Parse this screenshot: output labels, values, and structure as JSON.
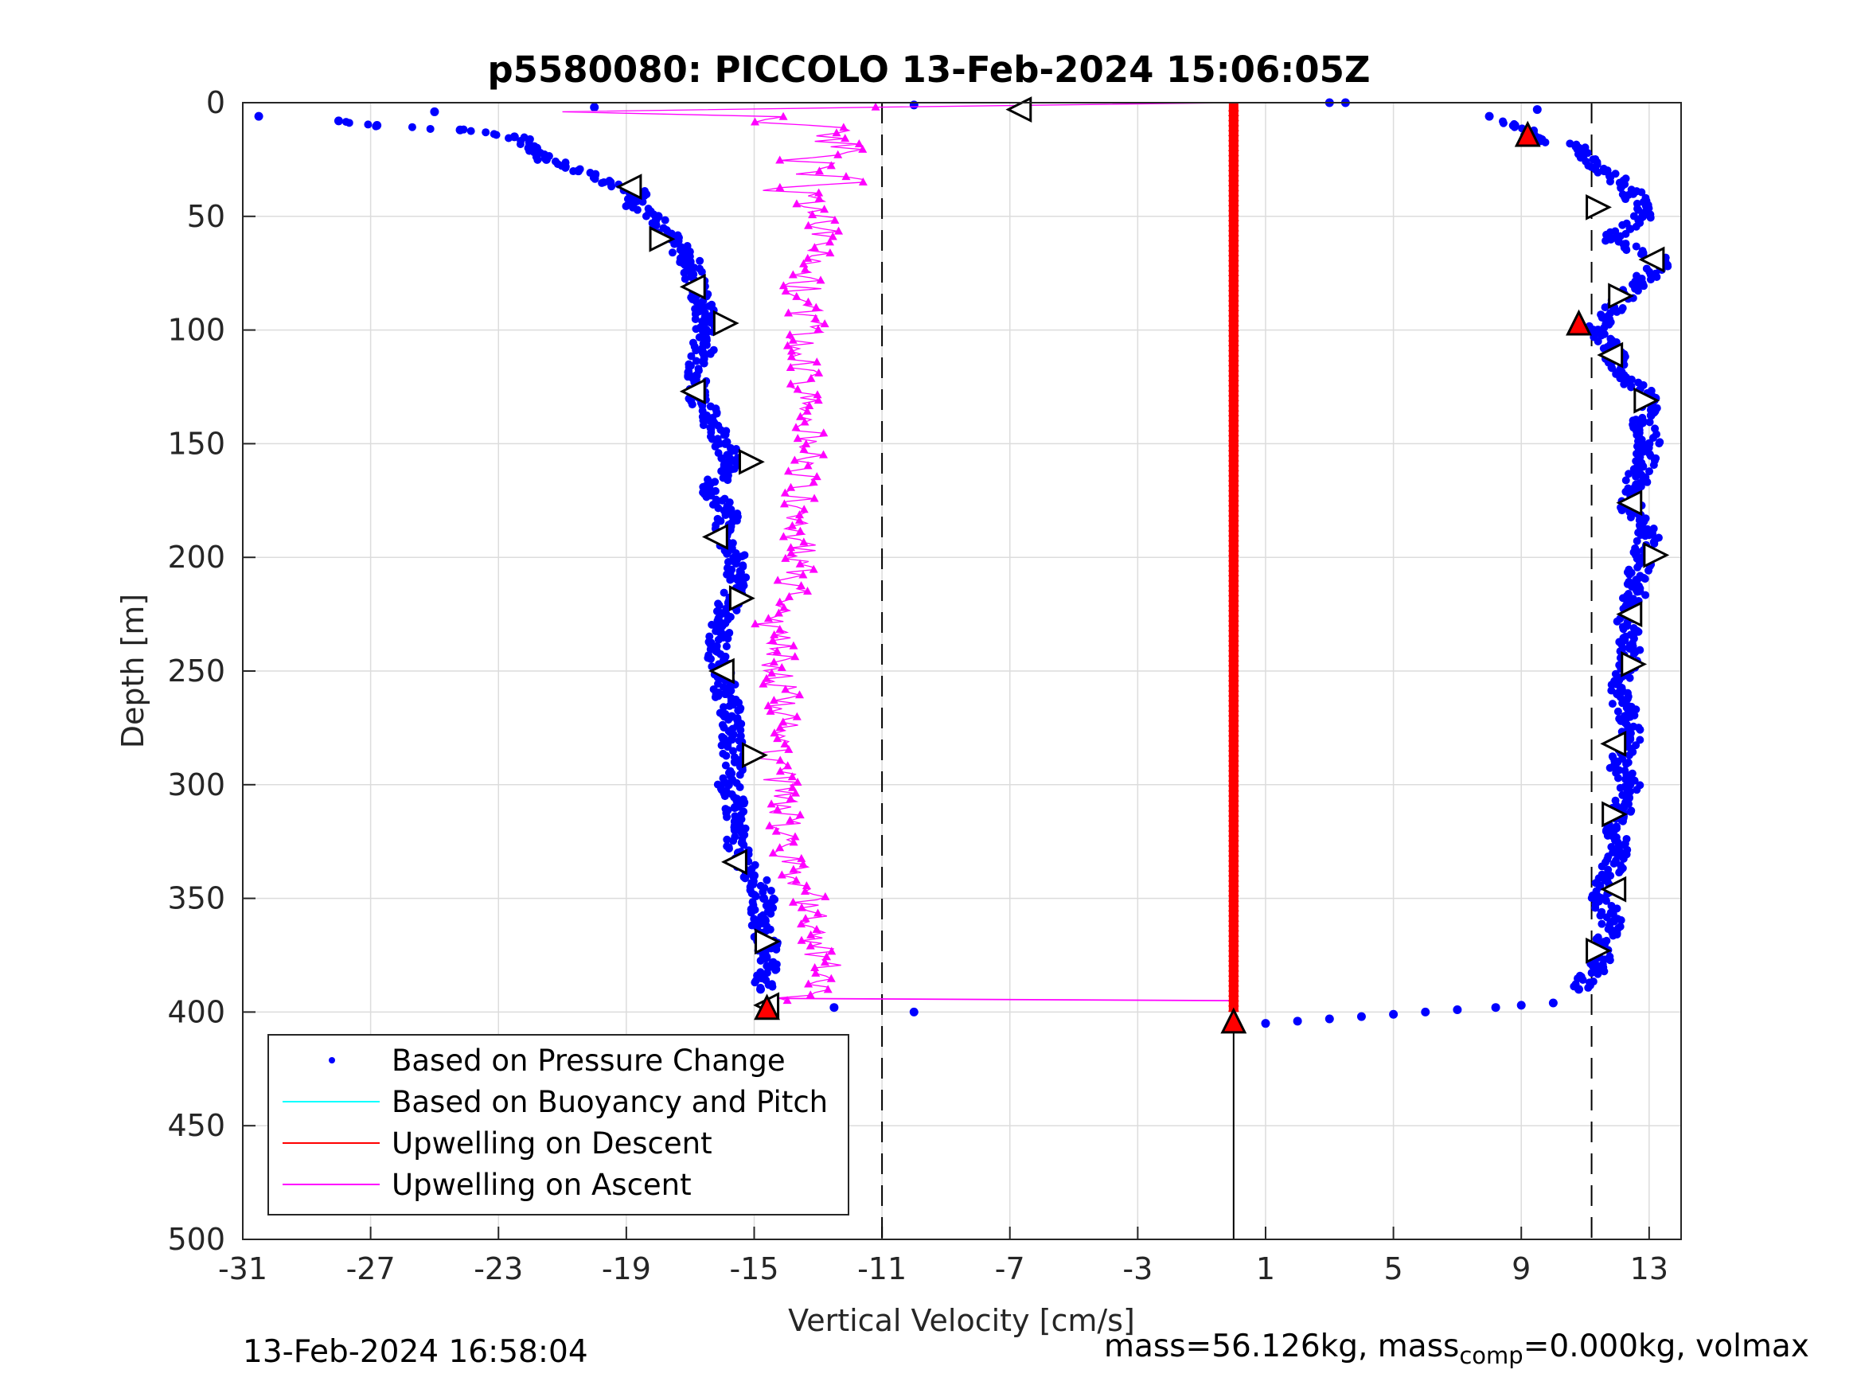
{
  "chart_data": {
    "type": "scatter",
    "title": "p5580080: PICCOLO 13-Feb-2024 15:06:05Z",
    "xlabel": "Vertical Velocity [cm/s]",
    "ylabel": "Depth [m]",
    "xlim": [
      -31,
      14
    ],
    "ylim": [
      0,
      500
    ],
    "y_reversed": true,
    "xticks": [
      "-31",
      "-27",
      "-23",
      "-19",
      "-15",
      "-11",
      "-7",
      "-3",
      "1",
      "5",
      "9",
      "13"
    ],
    "yticks": [
      "0",
      "50",
      "100",
      "150",
      "200",
      "250",
      "300",
      "350",
      "400",
      "450",
      "500"
    ],
    "grid": true,
    "legend_position": "bottom-left",
    "legend": [
      {
        "label": "Based on Pressure Change",
        "color": "#0000ff",
        "style": "dot"
      },
      {
        "label": "Based on Buoyancy and Pitch",
        "color": "#00ffff",
        "style": "line"
      },
      {
        "label": "Upwelling on Descent",
        "color": "#ff0000",
        "style": "line"
      },
      {
        "label": "Upwelling on Ascent",
        "color": "#ff00ff",
        "style": "line"
      }
    ],
    "reference_lines": {
      "dashed_x": [
        -11,
        11.2
      ],
      "solid_x": 0
    },
    "pressure_change_descent": {
      "depth": [
        0,
        3,
        6,
        10,
        14,
        16,
        20,
        30,
        40,
        50,
        60,
        70,
        80,
        90,
        100,
        110,
        120,
        130,
        140,
        150,
        160,
        170,
        180,
        190,
        200,
        210,
        220,
        230,
        240,
        250,
        260,
        270,
        280,
        290,
        300,
        310,
        320,
        330,
        340,
        350,
        360,
        370,
        380,
        390,
        396,
        397,
        398,
        399,
        400,
        401,
        402,
        403,
        404,
        405
      ],
      "velocity": [
        3.5,
        9.5,
        8,
        8.8,
        9.3,
        9.6,
        10.8,
        11.6,
        12.5,
        12.8,
        11.8,
        13.5,
        12.6,
        11.9,
        11.4,
        11.9,
        12.1,
        13.2,
        12.8,
        13,
        12.8,
        12.5,
        12.4,
        13,
        12.8,
        12.6,
        12.5,
        12.3,
        12.4,
        12.3,
        12.0,
        12.4,
        12.4,
        12.0,
        12.4,
        12.2,
        11.9,
        12.1,
        11.7,
        11.5,
        11.9,
        11.6,
        11.4,
        10.8,
        10,
        9.0,
        8.2,
        7.0,
        6.0,
        5.0,
        4.0,
        3.0,
        2.0,
        1.0
      ]
    },
    "pressure_change_ascent": {
      "depth": [
        400,
        398,
        396,
        390,
        380,
        370,
        360,
        350,
        340,
        330,
        320,
        310,
        300,
        290,
        280,
        270,
        260,
        250,
        240,
        230,
        220,
        210,
        200,
        190,
        180,
        170,
        160,
        150,
        140,
        130,
        120,
        110,
        100,
        90,
        80,
        70,
        60,
        50,
        45,
        40,
        35,
        30,
        25,
        20,
        15,
        12,
        10,
        8,
        6,
        4,
        2,
        1,
        0
      ],
      "velocity": [
        -10,
        -12.5,
        -14.5,
        -14.8,
        -14.5,
        -14.6,
        -14.8,
        -14.7,
        -15.0,
        -15.5,
        -15.6,
        -15.6,
        -15.8,
        -15.6,
        -15.7,
        -15.7,
        -15.9,
        -16.0,
        -16.2,
        -16.0,
        -15.8,
        -15.5,
        -15.6,
        -16.0,
        -15.8,
        -16.4,
        -15.8,
        -15.9,
        -16.3,
        -16.7,
        -16.8,
        -16.6,
        -16.5,
        -16.6,
        -16.8,
        -17.0,
        -17.6,
        -18.0,
        -18.8,
        -18.5,
        -19.5,
        -20.5,
        -21.5,
        -21.8,
        -22.5,
        -24.2,
        -26.8,
        -28,
        -30.5,
        -25,
        -20,
        -10,
        3
      ]
    },
    "upwelling_ascent": {
      "depth": [
        395,
        390,
        380,
        370,
        360,
        350,
        340,
        330,
        320,
        310,
        300,
        290,
        280,
        270,
        260,
        250,
        240,
        230,
        220,
        210,
        200,
        190,
        180,
        170,
        160,
        150,
        140,
        130,
        120,
        110,
        100,
        90,
        80,
        70,
        60,
        50,
        40,
        30,
        20,
        10,
        5,
        4
      ],
      "velocity": [
        -14.0,
        -13.0,
        -12.7,
        -13.1,
        -13.3,
        -13.2,
        -13.8,
        -14.0,
        -14.0,
        -14.1,
        -14.1,
        -14.5,
        -14.5,
        -14.0,
        -14.0,
        -14.3,
        -14.0,
        -14.5,
        -14.0,
        -13.8,
        -13.6,
        -13.5,
        -13.7,
        -13.5,
        -13.3,
        -13.4,
        -13.3,
        -13.5,
        -13.2,
        -13.6,
        -13.3,
        -13.4,
        -13.5,
        -13.0,
        -13.0,
        -12.8,
        -13.2,
        -12.4,
        -12.5,
        -13.5,
        -15.0,
        -21.0
      ]
    },
    "upwelling_descent": {
      "velocity": 0,
      "depth_range": [
        0,
        400
      ]
    },
    "marker_triangles_ascent": {
      "depth": [
        3,
        37,
        60,
        81,
        97,
        127,
        158,
        191,
        218,
        250,
        287,
        334,
        369,
        397
      ],
      "velocity": [
        -6.7,
        -18.9,
        -17.9,
        -16.9,
        -15.9,
        -16.9,
        -15.1,
        -16.2,
        -15.4,
        -16.0,
        -15.0,
        -15.6,
        -14.6,
        -14.6
      ],
      "direction": [
        "left",
        "left",
        "right",
        "left",
        "right",
        "left",
        "right",
        "left",
        "right",
        "left",
        "right",
        "left",
        "right",
        "left"
      ]
    },
    "marker_triangles_descent": {
      "depth": [
        46,
        69,
        85,
        111,
        131,
        176,
        199,
        225,
        247,
        282,
        313,
        346,
        373
      ],
      "velocity": [
        11.4,
        13.1,
        12.1,
        11.8,
        12.9,
        12.4,
        13.2,
        12.4,
        12.5,
        11.9,
        11.9,
        11.9,
        11.4
      ],
      "direction": [
        "right",
        "left",
        "right",
        "left",
        "right",
        "left",
        "right",
        "left",
        "right",
        "left",
        "right",
        "left",
        "right"
      ]
    },
    "red_triangles": {
      "depth": [
        14,
        97,
        398,
        404
      ],
      "velocity": [
        9.2,
        10.8,
        -14.6,
        0
      ]
    }
  },
  "footer": {
    "timestamp": "13-Feb-2024 16:58:04",
    "mass_text": "mass=56.126kg, mass",
    "mass_sub": "comp",
    "mass_rest": "=0.000kg, volmax"
  }
}
